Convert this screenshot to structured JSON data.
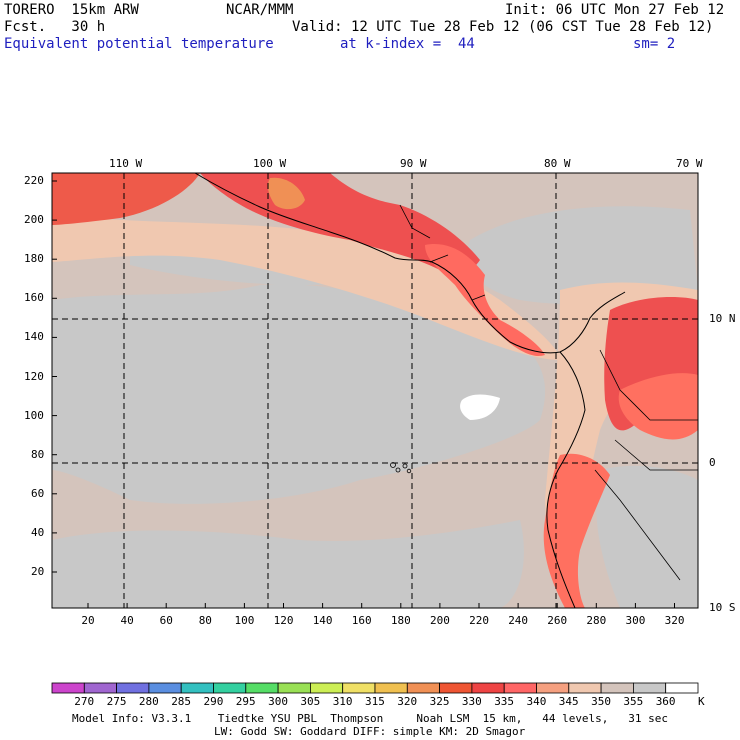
{
  "header": {
    "model": "TORERO  15km ARW",
    "center": "NCAR/MMM",
    "init": "Init: 06 UTC Mon 27 Feb 12",
    "fcst": "Fcst.   30 h",
    "valid": "Valid: 12 UTC Tue 28 Feb 12 (06 CST Tue 28 Feb 12)",
    "field": "Equivalent potential temperature",
    "level": "at k-index =  44",
    "smooth": "sm= 2"
  },
  "map": {
    "top_lon_labels": [
      "110 W",
      "100 W",
      "90 W",
      "80 W",
      "70 W"
    ],
    "right_lat_labels": [
      "10 N",
      "0",
      "10 S"
    ],
    "left_grid_labels": [
      "220",
      "200",
      "180",
      "160",
      "140",
      "120",
      "100",
      "80",
      "60",
      "40",
      "20"
    ],
    "bottom_grid_labels": [
      "20",
      "40",
      "60",
      "80",
      "100",
      "120",
      "140",
      "160",
      "180",
      "200",
      "220",
      "240",
      "260",
      "280",
      "300",
      "320"
    ]
  },
  "colorbar": {
    "labels": [
      "270",
      "275",
      "280",
      "285",
      "290",
      "295",
      "300",
      "305",
      "310",
      "315",
      "320",
      "325",
      "330",
      "335",
      "340",
      "345",
      "350",
      "355",
      "360"
    ],
    "unit": "K",
    "colors": [
      "#cc44cc",
      "#a066d0",
      "#7070e0",
      "#5a8ee0",
      "#33c0c0",
      "#33d0a0",
      "#55dd66",
      "#99e055",
      "#ccee55",
      "#f0e066",
      "#f0c050",
      "#f09055",
      "#ee5533",
      "#ee4444",
      "#ff6666",
      "#f5a080",
      "#f0c8b0",
      "#d4c4bc",
      "#c8c8c8",
      "#ffffff"
    ]
  },
  "footer": {
    "line1": "Model Info: V3.3.1    Tiedtke YSU PBL  Thompson     Noah LSM  15 km,   44 levels,   31 sec",
    "line2": "LW: Godd SW: Goddard DIFF: simple KM: 2D Smagor"
  }
}
